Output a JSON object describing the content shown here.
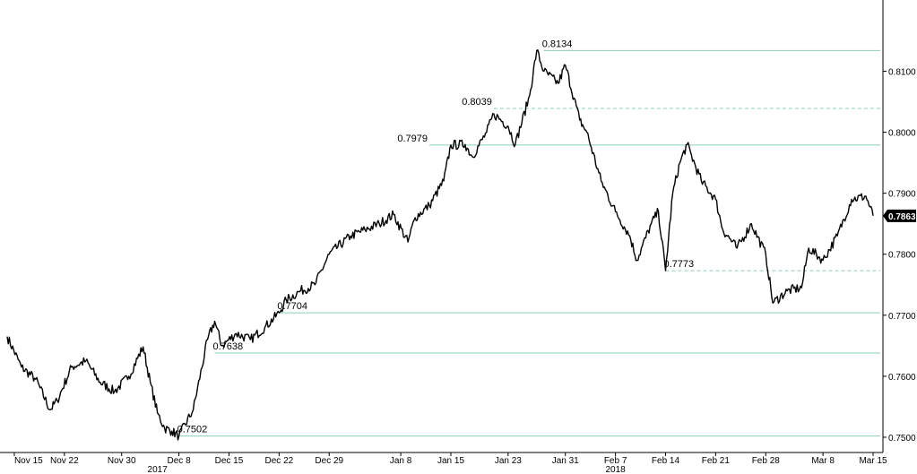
{
  "chart_data": {
    "type": "line",
    "title": "",
    "xlabel": "",
    "ylabel": "",
    "ylim": [
      0.7475,
      0.8205
    ],
    "x_tick_labels": [
      "Nov 15",
      "Nov 22",
      "Nov 30",
      "Dec 8",
      "Dec 15",
      "Dec 22",
      "Dec 29",
      "Jan 8",
      "Jan 15",
      "Jan 23",
      "Jan 31",
      "Feb 7",
      "Feb 14",
      "Feb 21",
      "Feb 28",
      "Mar 8",
      "Mar 15"
    ],
    "year_labels": [
      "2017",
      "2018"
    ],
    "y_ticks": [
      "0.7500",
      "0.7600",
      "0.7700",
      "0.7800",
      "0.7900",
      "0.8000",
      "0.8100"
    ],
    "y_tick_values": [
      0.75,
      0.76,
      0.77,
      0.78,
      0.79,
      0.8,
      0.81
    ],
    "last_value": {
      "value": 0.7863,
      "label": "0.7863"
    },
    "levels": [
      {
        "value": 0.8134,
        "label": "0.8134",
        "style": "solid",
        "anchor": "Jan 28"
      },
      {
        "value": 0.8039,
        "label": "0.8039",
        "style": "dashed",
        "anchor": "Jan 21"
      },
      {
        "value": 0.7979,
        "label": "0.7979",
        "style": "solid",
        "anchor": "Jan 12"
      },
      {
        "value": 0.7773,
        "label": "0.7773",
        "style": "dashed",
        "anchor": "Feb 14"
      },
      {
        "value": 0.7704,
        "label": "0.7704",
        "style": "solid",
        "anchor": "Dec 22"
      },
      {
        "value": 0.7638,
        "label": "0.7638",
        "style": "solid",
        "anchor": "Dec 13"
      },
      {
        "value": 0.7502,
        "label": "0.7502",
        "style": "solid",
        "anchor": "Dec 8"
      }
    ],
    "series": [
      {
        "x": [
          "Nov 14",
          "Nov 16",
          "Nov 18",
          "Nov 20",
          "Nov 21",
          "Nov 23",
          "Nov 25",
          "Nov 27",
          "Nov 29",
          "Dec 1",
          "Dec 3",
          "Dec 4",
          "Dec 5",
          "Dec 6",
          "Dec 7",
          "Dec 8",
          "Dec 10",
          "Dec 12",
          "Dec 13",
          "Dec 14",
          "Dec 16",
          "Dec 18",
          "Dec 20",
          "Dec 22",
          "Dec 23",
          "Dec 25",
          "Dec 27",
          "Dec 29",
          "Jan 1",
          "Jan 3",
          "Jan 5",
          "Jan 7",
          "Jan 9",
          "Jan 10",
          "Jan 12",
          "Jan 14",
          "Jan 15",
          "Jan 17",
          "Jan 18",
          "Jan 20",
          "Jan 21",
          "Jan 23",
          "Jan 24",
          "Jan 26",
          "Jan 27",
          "Jan 28",
          "Jan 30",
          "Jan 31",
          "Feb 2",
          "Feb 3",
          "Feb 5",
          "Feb 7",
          "Feb 9",
          "Feb 10",
          "Feb 12",
          "Feb 13",
          "Feb 14",
          "Feb 15",
          "Feb 16",
          "Feb 17",
          "Feb 19",
          "Feb 21",
          "Feb 22",
          "Feb 24",
          "Feb 26",
          "Feb 28",
          "Mar 1",
          "Mar 3",
          "Mar 5",
          "Mar 6",
          "Mar 8",
          "Mar 10",
          "Mar 12",
          "Mar 14",
          "Mar 15"
        ],
        "values": [
          0.7665,
          0.7615,
          0.7595,
          0.7545,
          0.756,
          0.7615,
          0.7625,
          0.759,
          0.7575,
          0.76,
          0.7648,
          0.759,
          0.754,
          0.7515,
          0.751,
          0.7502,
          0.7545,
          0.766,
          0.769,
          0.765,
          0.767,
          0.766,
          0.768,
          0.7704,
          0.7725,
          0.774,
          0.775,
          0.78,
          0.783,
          0.784,
          0.785,
          0.7865,
          0.782,
          0.786,
          0.788,
          0.792,
          0.7979,
          0.798,
          0.796,
          0.8,
          0.803,
          0.801,
          0.798,
          0.806,
          0.8134,
          0.81,
          0.808,
          0.811,
          0.802,
          0.8,
          0.792,
          0.787,
          0.783,
          0.779,
          0.785,
          0.787,
          0.7773,
          0.79,
          0.795,
          0.798,
          0.792,
          0.789,
          0.784,
          0.781,
          0.785,
          0.78,
          0.772,
          0.774,
          0.7745,
          0.781,
          0.779,
          0.783,
          0.789,
          0.7895,
          0.7863
        ]
      }
    ],
    "colors": {
      "line": "#000000",
      "level_line": "#8ccfb8",
      "badge": "#000000"
    },
    "grid": false,
    "legend": "none"
  }
}
